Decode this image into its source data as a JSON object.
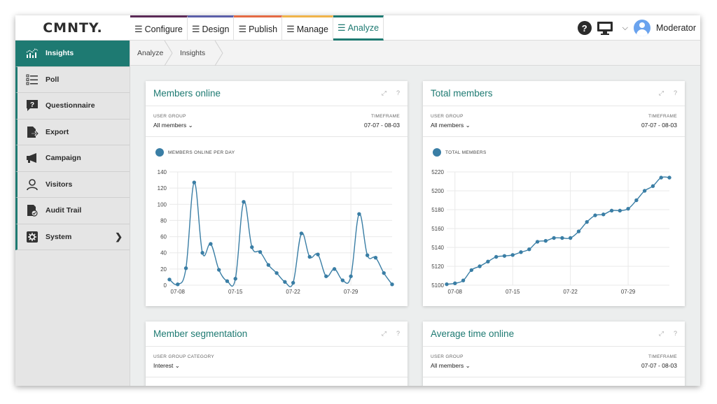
{
  "logo": "CMNTY.",
  "nav": {
    "tabs": [
      {
        "label": "Configure"
      },
      {
        "label": "Design"
      },
      {
        "label": "Publish"
      },
      {
        "label": "Manage"
      },
      {
        "label": "Analyze"
      }
    ],
    "help_icon": "help-icon",
    "help_glyph": "?",
    "screen_icon": "monitor-icon",
    "user_name": "Moderator"
  },
  "sidebar": {
    "items": [
      {
        "label": "Insights",
        "icon": "insights-chart-icon",
        "active": true
      },
      {
        "label": "Poll",
        "icon": "poll-list-icon"
      },
      {
        "label": "Questionnaire",
        "icon": "questionnaire-icon"
      },
      {
        "label": "Export",
        "icon": "export-icon"
      },
      {
        "label": "Campaign",
        "icon": "megaphone-icon"
      },
      {
        "label": "Visitors",
        "icon": "visitor-person-icon"
      },
      {
        "label": "Audit Trail",
        "icon": "audit-trail-icon"
      },
      {
        "label": "System",
        "icon": "system-gear-icon",
        "has_submenu": true
      }
    ]
  },
  "breadcrumb": [
    "Analyze",
    "Insights"
  ],
  "colors": {
    "accent": "#1e7a72",
    "series": "#3a7ea5"
  },
  "cards": {
    "members_online": {
      "title": "Members online",
      "filter_label": "USER GROUP",
      "filter_value": "All members ⌄",
      "timeframe_label": "TIMEFRAME",
      "timeframe_value": "07-07 - 08-03",
      "legend": "MEMBERS ONLINE PER DAY"
    },
    "total_members": {
      "title": "Total members",
      "filter_label": "USER GROUP",
      "filter_value": "All members ⌄",
      "timeframe_label": "TIMEFRAME",
      "timeframe_value": "07-07 - 08-03",
      "legend": "TOTAL MEMBERS"
    },
    "member_segmentation": {
      "title": "Member segmentation",
      "filter_label": "USER GROUP CATEGORY",
      "filter_value": "Interest ⌄"
    },
    "average_time_online": {
      "title": "Average time online",
      "filter_label": "USER GROUP",
      "filter_value": "All members ⌄",
      "timeframe_label": "TIMEFRAME",
      "timeframe_value": "07-07 - 08-03"
    }
  },
  "chart_data": [
    {
      "type": "line",
      "legend": "MEMBERS ONLINE PER DAY",
      "x_tick_labels": [
        "07-08",
        "07-15",
        "07-22",
        "07-29"
      ],
      "x_tick_index": [
        1,
        8,
        15,
        22
      ],
      "ylim": [
        0,
        140
      ],
      "y_ticks": [
        0,
        20,
        40,
        60,
        80,
        100,
        120,
        140
      ],
      "grid": true,
      "series": [
        {
          "values": [
            7,
            1,
            21,
            127,
            40,
            51,
            19,
            5,
            8,
            103,
            47,
            41,
            25,
            15,
            4,
            3,
            64,
            35,
            38,
            11,
            20,
            6,
            11,
            88,
            37,
            34,
            15,
            1
          ]
        }
      ]
    },
    {
      "type": "line",
      "legend": "TOTAL MEMBERS",
      "x_tick_labels": [
        "07-08",
        "07-15",
        "07-22",
        "07-29"
      ],
      "x_tick_index": [
        1,
        8,
        15,
        22
      ],
      "ylim": [
        5100,
        5220
      ],
      "y_ticks": [
        5100,
        5120,
        5140,
        5160,
        5180,
        5200,
        5220
      ],
      "grid": true,
      "series": [
        {
          "values": [
            5101,
            5102,
            5105,
            5116,
            5120,
            5125,
            5130,
            5131,
            5132,
            5135,
            5138,
            5146,
            5147,
            5150,
            5150,
            5150,
            5157,
            5167,
            5174,
            5175,
            5179,
            5179,
            5181,
            5190,
            5200,
            5205,
            5214,
            5214
          ]
        }
      ]
    }
  ]
}
